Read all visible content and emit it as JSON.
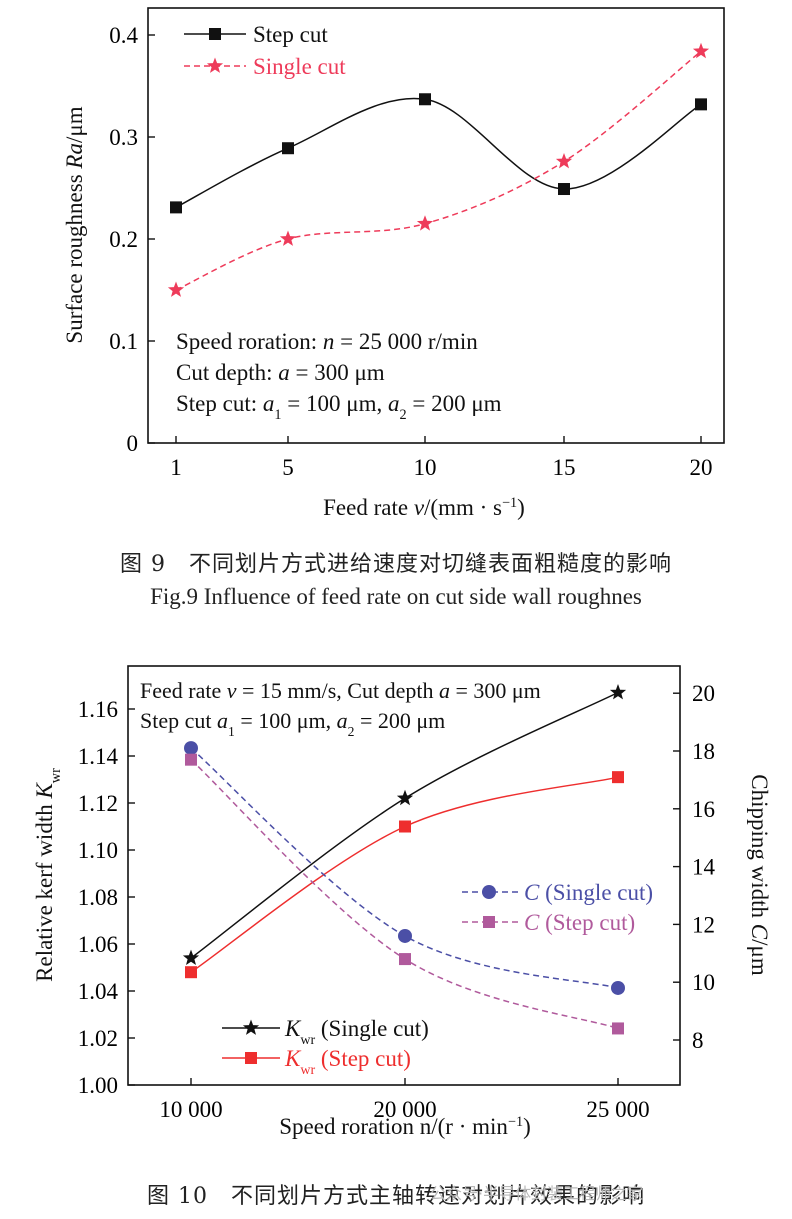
{
  "chart_data": [
    {
      "type": "line",
      "x_categories": [
        "1",
        "5",
        "10",
        "15",
        "20"
      ],
      "xlabel": "Feed rate v/(mm · s⁻¹)",
      "ylabel": "Surface roughness Ra/μm",
      "ylim": [
        0,
        0.4
      ],
      "yticks": [
        "0",
        "0.1",
        "0.2",
        "0.3",
        "0.4"
      ],
      "grid": false,
      "legend_position": "top-left",
      "series": [
        {
          "name": "Step cut",
          "marker": "square",
          "color": "#111111",
          "dash": false,
          "values": [
            0.231,
            0.289,
            0.337,
            0.249,
            0.332
          ]
        },
        {
          "name": "Single cut",
          "marker": "star",
          "color": "#ee3b5a",
          "dash": true,
          "values": [
            0.15,
            0.2,
            0.215,
            0.276,
            0.384
          ]
        }
      ],
      "annotations": [
        "Speed roration: n = 25 000 r/min",
        "Cut depth: a = 300 μm",
        "Step cut: a₁ = 100 μm, a₂ = 200 μm"
      ]
    },
    {
      "type": "line",
      "x_categories": [
        "10 000",
        "20 000",
        "25 000"
      ],
      "xlabel": "Speed roration n/(r · min⁻¹)",
      "ylabel_left": "Relative kerf width K_wr",
      "ylabel_right": "Chipping width C/μm",
      "ylim_left": [
        1.0,
        1.17
      ],
      "ylim_right": [
        7,
        21
      ],
      "yticks_left": [
        "1.00",
        "1.02",
        "1.04",
        "1.06",
        "1.08",
        "1.10",
        "1.12",
        "1.14",
        "1.16"
      ],
      "yticks_right": [
        "8",
        "10",
        "12",
        "14",
        "16",
        "18",
        "20"
      ],
      "grid": false,
      "series": [
        {
          "name": "K_wr (Single cut)",
          "axis": "left",
          "marker": "star",
          "color": "#111111",
          "dash": false,
          "values": [
            1.054,
            1.122,
            1.167
          ]
        },
        {
          "name": "K_wr (Step cut)",
          "axis": "left",
          "marker": "square",
          "color": "#ee2e2e",
          "dash": false,
          "values": [
            1.048,
            1.11,
            1.131
          ]
        },
        {
          "name": "C (Single cut)",
          "axis": "right",
          "marker": "circle",
          "color": "#4b4fa6",
          "dash": true,
          "values": [
            18.1,
            11.6,
            9.8
          ]
        },
        {
          "name": "C (Step cut)",
          "axis": "right",
          "marker": "square",
          "color": "#b05a9c",
          "dash": true,
          "values": [
            17.7,
            10.8,
            8.4
          ]
        }
      ],
      "annotations": [
        "Feed rate v = 15 mm/s, Cut depth a = 300 μm",
        "Step cut a₁ = 100 μm, a₂ = 200 μm"
      ]
    }
  ],
  "captions": {
    "fig9_cn": "图 9　不同划片方式进给速度对切缝表面粗糙度的影响",
    "fig9_en": "Fig.9 Influence of feed rate on cut side wall roughnes",
    "fig10_cn": "图 10　不同划片方式主轴转速对划片效果的影响",
    "watermark": "公众号·半导体封装工程师之家"
  }
}
